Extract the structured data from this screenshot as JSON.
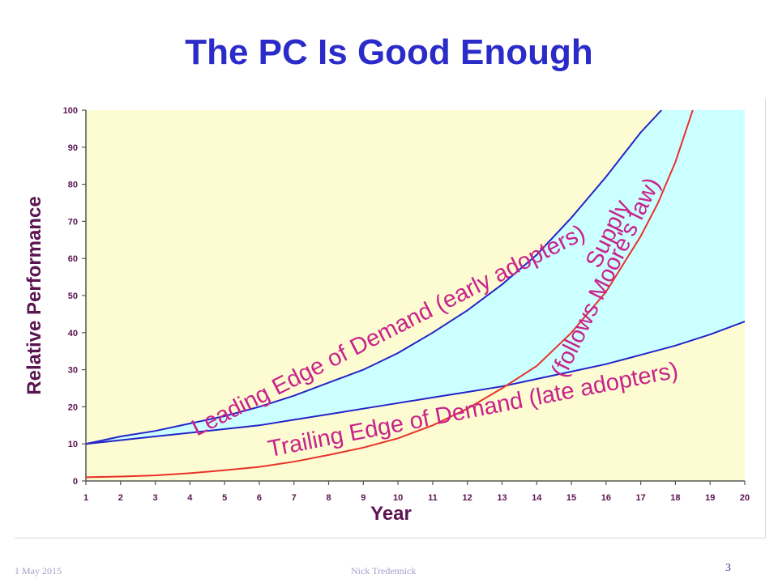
{
  "slide": {
    "title": "The PC Is Good Enough",
    "footer_date": "1 May 2015",
    "footer_author": "Nick Tredennick",
    "page_number": "3"
  },
  "colors": {
    "background": "#fdfbd2",
    "fill_between": "#ccffff",
    "demand_lines": "#2424c8",
    "supply_line": "#e8322a",
    "annotation_text": "#c8238a",
    "axis_text": "#5a1450"
  },
  "chart_data": {
    "type": "line",
    "xlabel": "Year",
    "ylabel": "Relative Performance",
    "xlim": [
      1,
      20
    ],
    "ylim": [
      0,
      100
    ],
    "x_ticks": [
      1,
      2,
      3,
      4,
      5,
      6,
      7,
      8,
      9,
      10,
      11,
      12,
      13,
      14,
      15,
      16,
      17,
      18,
      19,
      20
    ],
    "y_ticks": [
      0,
      10,
      20,
      30,
      40,
      50,
      60,
      70,
      80,
      90,
      100
    ],
    "grid": false,
    "fill_between": [
      "Leading Edge of Demand (early adopters)",
      "Trailing Edge of Demand (late adopters)"
    ],
    "series": [
      {
        "name": "Leading Edge of Demand (early adopters)",
        "color": "#2424c8",
        "x": [
          1,
          2,
          3,
          4,
          5,
          6,
          7,
          8,
          9,
          10,
          11,
          12,
          13,
          14,
          15,
          16,
          17,
          17.6
        ],
        "y": [
          10,
          12,
          13.5,
          15.5,
          17.5,
          20,
          23,
          26.5,
          30,
          34.5,
          40,
          46,
          53,
          61,
          71,
          82,
          94,
          100
        ]
      },
      {
        "name": "Trailing Edge of Demand (late adopters)",
        "color": "#2424c8",
        "x": [
          1,
          2,
          3,
          4,
          5,
          6,
          7,
          8,
          9,
          10,
          11,
          12,
          13,
          14,
          15,
          16,
          17,
          18,
          19,
          20
        ],
        "y": [
          10,
          11,
          12,
          13,
          14,
          15,
          16.5,
          18,
          19.5,
          21,
          22.5,
          24,
          25.5,
          27.5,
          29.5,
          31.5,
          34,
          36.5,
          39.5,
          43
        ]
      },
      {
        "name": "Supply (follows Moore's law)",
        "color": "#e8322a",
        "x": [
          1,
          2,
          3,
          4,
          5,
          6,
          7,
          8,
          9,
          10,
          11,
          12,
          13,
          14,
          15,
          16,
          17,
          17.5,
          18,
          18.5
        ],
        "y": [
          1,
          1.2,
          1.5,
          2.1,
          2.9,
          3.8,
          5.2,
          7,
          9,
          11.5,
          15,
          19.5,
          25,
          31,
          40,
          51,
          66,
          75,
          86,
          100
        ]
      }
    ],
    "annotations": [
      {
        "text": "Leading Edge of Demand (early adopters)",
        "x": 4.2,
        "y": 12,
        "angle": -27
      },
      {
        "text": "Trailing Edge of Demand (late adopters)",
        "x": 6.3,
        "y": 6.5,
        "angle": -11
      },
      {
        "text": "Supply",
        "x": 15.8,
        "y": 57,
        "angle": -64
      },
      {
        "text": "(follows Moore's law)",
        "x": 14.8,
        "y": 27.5,
        "angle": -64
      }
    ]
  }
}
